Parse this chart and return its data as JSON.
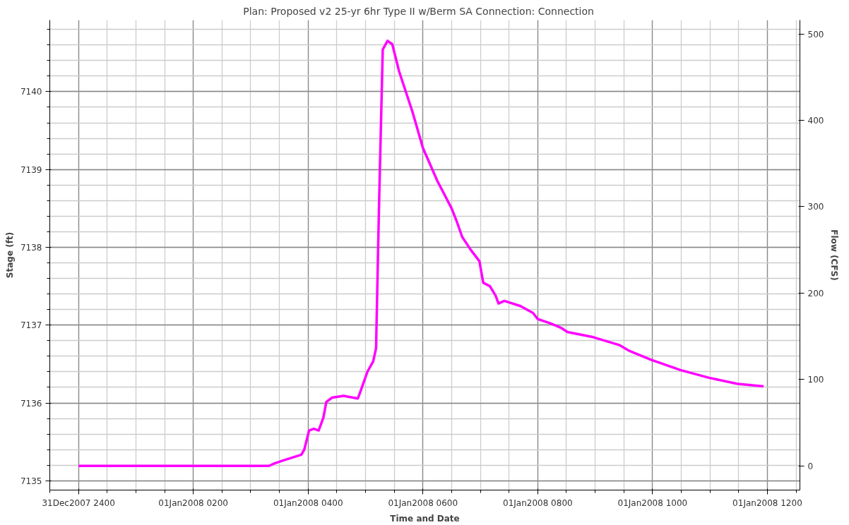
{
  "chart_data": {
    "type": "line",
    "title": "Plan: Proposed v2 25-yr 6hr Type II w/Berm     SA Connection: Connection",
    "xlabel": "Time and Date",
    "ylabel": "Stage (ft)",
    "y2label": "Flow (CFS)",
    "xlim": [
      "2007-12-31T23:30",
      "2008-01-01T12:34"
    ],
    "xticks": [
      {
        "value": "2007-12-31T24:00",
        "label": "31Dec2007 2400"
      },
      {
        "value": "2008-01-01T02:00",
        "label": "01Jan2008 0200"
      },
      {
        "value": "2008-01-01T04:00",
        "label": "01Jan2008 0400"
      },
      {
        "value": "2008-01-01T06:00",
        "label": "01Jan2008 0600"
      },
      {
        "value": "2008-01-01T08:00",
        "label": "01Jan2008 0800"
      },
      {
        "value": "2008-01-01T10:00",
        "label": "01Jan2008 1000"
      },
      {
        "value": "2008-01-01T12:00",
        "label": "01Jan2008 1200"
      }
    ],
    "ylim": [
      7134.88,
      7140.92
    ],
    "yticks": [
      7135,
      7136,
      7137,
      7138,
      7139,
      7140
    ],
    "y2lim": [
      -28,
      516
    ],
    "y2ticks": [
      0,
      100,
      200,
      300,
      400,
      500
    ],
    "grid": true,
    "marker": "none",
    "line_style": "solid",
    "series": [
      {
        "color": "#ff00ff",
        "axis": "y2",
        "x": [
          "2008-01-01T00:00",
          "2008-01-01T03:19",
          "2008-01-01T03:25",
          "2008-01-01T03:36",
          "2008-01-01T03:53",
          "2008-01-01T03:56",
          "2008-01-01T04:01",
          "2008-01-01T04:06",
          "2008-01-01T04:11",
          "2008-01-01T04:16",
          "2008-01-01T04:19",
          "2008-01-01T04:25",
          "2008-01-01T04:37",
          "2008-01-01T04:52",
          "2008-01-01T04:55",
          "2008-01-01T05:02",
          "2008-01-01T05:08",
          "2008-01-01T05:11",
          "2008-01-01T05:14",
          "2008-01-01T05:18",
          "2008-01-01T05:23",
          "2008-01-01T05:28",
          "2008-01-01T05:35",
          "2008-01-01T05:49",
          "2008-01-01T06:00",
          "2008-01-01T06:15",
          "2008-01-01T06:30",
          "2008-01-01T06:35",
          "2008-01-01T06:41",
          "2008-01-01T06:50",
          "2008-01-01T06:59",
          "2008-01-01T07:03",
          "2008-01-01T07:10",
          "2008-01-01T07:16",
          "2008-01-01T07:19",
          "2008-01-01T07:25",
          "2008-01-01T07:42",
          "2008-01-01T07:55",
          "2008-01-01T08:00",
          "2008-01-01T08:13",
          "2008-01-01T08:24",
          "2008-01-01T08:31",
          "2008-01-01T08:58",
          "2008-01-01T09:25",
          "2008-01-01T09:36",
          "2008-01-01T09:58",
          "2008-01-01T10:29",
          "2008-01-01T10:59",
          "2008-01-01T11:29",
          "2008-01-01T11:56"
        ],
        "values": [
          0,
          0,
          3,
          7,
          13,
          19,
          41,
          43,
          41,
          56,
          74,
          79,
          81,
          78,
          87,
          109,
          121,
          136,
          296,
          482,
          492,
          488,
          457,
          410,
          368,
          330,
          298,
          284,
          265,
          250,
          237,
          212,
          208,
          197,
          188,
          191,
          185,
          177,
          170,
          165,
          160,
          155,
          149,
          140,
          133,
          123,
          111,
          102,
          95,
          92
        ]
      }
    ]
  }
}
